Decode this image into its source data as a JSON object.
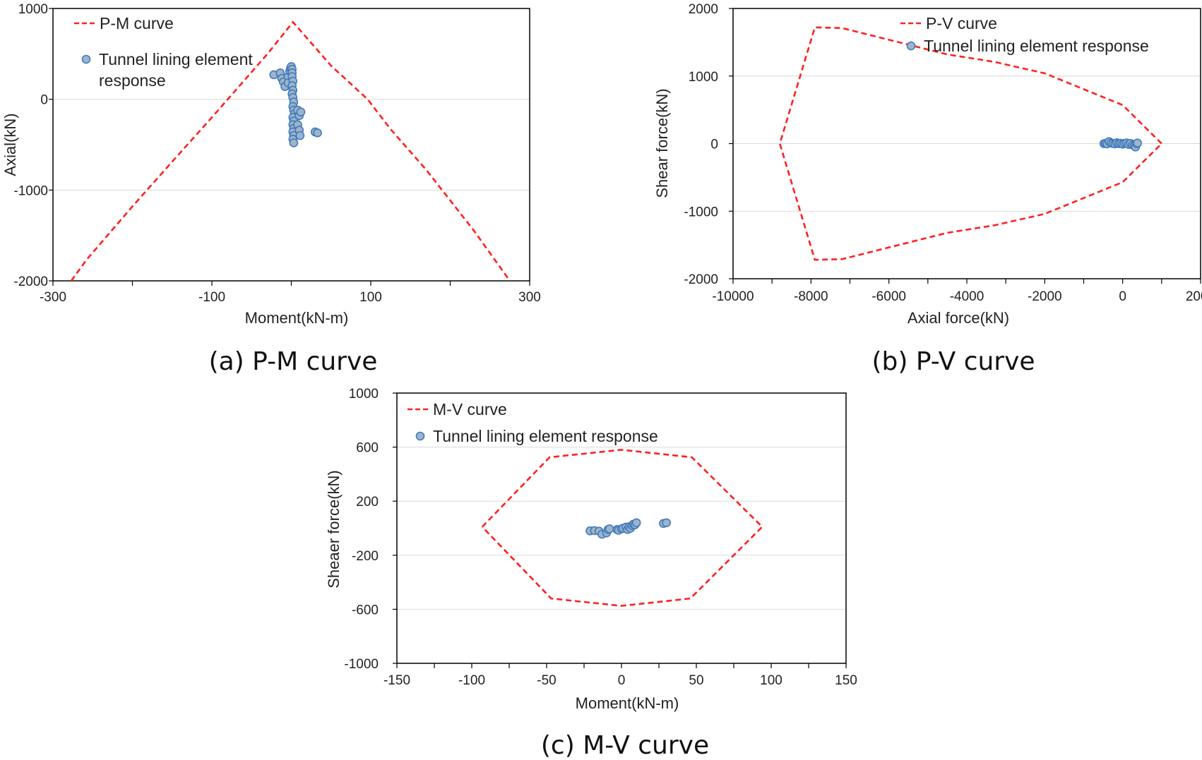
{
  "colors": {
    "curve": "#ff2020",
    "point_fill": "#9fb4c8",
    "point_stroke": "#3f7bbf",
    "grid": "#d9d9d9"
  },
  "chart_data": [
    {
      "type": "line",
      "caption": "(a) P-M curve",
      "xlabel": "Moment(kN-m)",
      "ylabel": "Axial(kN)",
      "xlim": [
        -300,
        300
      ],
      "ylim": [
        -2000,
        1000
      ],
      "xticks": [
        -300,
        -100,
        100,
        300
      ],
      "xtick_labels": [
        "-300",
        "-100",
        "100",
        "300"
      ],
      "yticks": [
        -2000,
        -1000,
        0,
        1000
      ],
      "ytick_labels": [
        "-2000",
        "-1000",
        "0",
        "1000"
      ],
      "gridlines_y": [
        -1000,
        0
      ],
      "legend_placement": "top-left",
      "series": [
        {
          "name": "P-M curve",
          "kind": "dashed-line",
          "points": [
            [
              -277,
              -2000
            ],
            [
              -258,
              -1770
            ],
            [
              -200,
              -1180
            ],
            [
              -140,
              -590
            ],
            [
              -100,
              -200
            ],
            [
              -70,
              100
            ],
            [
              -30,
              500
            ],
            [
              2,
              850
            ],
            [
              50,
              370
            ],
            [
              96,
              0
            ],
            [
              125,
              -330
            ],
            [
              170,
              -780
            ],
            [
              230,
              -1450
            ],
            [
              275,
              -2000
            ]
          ]
        },
        {
          "name": "Tunnel lining element response",
          "kind": "scatter",
          "points": [
            [
              -22,
              270
            ],
            [
              -14,
              290
            ],
            [
              -12,
              230
            ],
            [
              -10,
              190
            ],
            [
              -8,
              140
            ],
            [
              -4,
              250
            ],
            [
              -2,
              310
            ],
            [
              -4,
              180
            ],
            [
              -1,
              340
            ],
            [
              0,
              360
            ],
            [
              1,
              330
            ],
            [
              1,
              290
            ],
            [
              1,
              250
            ],
            [
              2,
              200
            ],
            [
              1,
              150
            ],
            [
              2,
              100
            ],
            [
              1,
              60
            ],
            [
              2,
              20
            ],
            [
              3,
              -30
            ],
            [
              2,
              -80
            ],
            [
              3,
              -120
            ],
            [
              4,
              -160
            ],
            [
              2,
              -200
            ],
            [
              3,
              -240
            ],
            [
              2,
              -280
            ],
            [
              3,
              -320
            ],
            [
              2,
              -360
            ],
            [
              3,
              -400
            ],
            [
              2,
              -440
            ],
            [
              3,
              -480
            ],
            [
              8,
              -120
            ],
            [
              10,
              -180
            ],
            [
              12,
              -140
            ],
            [
              8,
              -280
            ],
            [
              10,
              -340
            ],
            [
              11,
              -400
            ],
            [
              30,
              -360
            ],
            [
              33,
              -370
            ]
          ]
        }
      ]
    },
    {
      "type": "line",
      "caption": "(b) P-V curve",
      "xlabel": "Axial force(kN)",
      "ylabel": "Shear force(kN)",
      "xlim": [
        -10000,
        2000
      ],
      "ylim": [
        -2000,
        2000
      ],
      "xticks": [
        -10000,
        -8000,
        -6000,
        -4000,
        -2000,
        0,
        2000
      ],
      "xtick_labels": [
        "-10000",
        "-8000",
        "-6000",
        "-4000",
        "-2000",
        "0",
        "2000"
      ],
      "yticks": [
        -2000,
        -1000,
        0,
        1000,
        2000
      ],
      "ytick_labels": [
        "-2000",
        "-1000",
        "0",
        "1000",
        "2000"
      ],
      "gridlines_y": [
        -1000,
        0,
        1000
      ],
      "legend_placement": "top-center",
      "series": [
        {
          "name": "P-V curve",
          "kind": "dashed-line",
          "points": [
            [
              1000,
              0
            ],
            [
              0,
              570
            ],
            [
              -2000,
              1040
            ],
            [
              -3300,
              1210
            ],
            [
              -4500,
              1320
            ],
            [
              -7200,
              1710
            ],
            [
              -7900,
              1720
            ],
            [
              -8800,
              0
            ],
            [
              -7900,
              -1720
            ],
            [
              -7200,
              -1710
            ],
            [
              -4500,
              -1320
            ],
            [
              -3300,
              -1210
            ],
            [
              -2000,
              -1040
            ],
            [
              0,
              -570
            ],
            [
              1000,
              0
            ]
          ]
        },
        {
          "name": "Tunnel lining element response",
          "kind": "scatter",
          "points": [
            [
              -480,
              0
            ],
            [
              -440,
              5
            ],
            [
              -400,
              -3
            ],
            [
              -350,
              30
            ],
            [
              -300,
              10
            ],
            [
              -250,
              2
            ],
            [
              -200,
              -5
            ],
            [
              -150,
              12
            ],
            [
              -100,
              0
            ],
            [
              -50,
              5
            ],
            [
              0,
              -8
            ],
            [
              50,
              3
            ],
            [
              100,
              10
            ],
            [
              150,
              -12
            ],
            [
              200,
              4
            ],
            [
              250,
              -20
            ],
            [
              300,
              -30
            ],
            [
              330,
              -50
            ],
            [
              360,
              0
            ],
            [
              380,
              8
            ]
          ]
        }
      ]
    },
    {
      "type": "line",
      "caption": "(c) M-V curve",
      "xlabel": "Moment(kN-m)",
      "ylabel": "Sheaer force(kN)",
      "xlim": [
        -150,
        150
      ],
      "ylim": [
        -1000,
        1000
      ],
      "xticks": [
        -150,
        -100,
        -50,
        0,
        50,
        100,
        150
      ],
      "xtick_labels": [
        "-150",
        "-100",
        "-50",
        "0",
        "50",
        "100",
        "150"
      ],
      "yticks": [
        -1000,
        -600,
        -200,
        200,
        600,
        1000
      ],
      "ytick_labels": [
        "-1000",
        "-600",
        "-200",
        "200",
        "600",
        "1000"
      ],
      "gridlines_y": [
        -600,
        -200,
        200,
        600
      ],
      "legend_placement": "top-left",
      "series": [
        {
          "name": "M-V curve",
          "kind": "dashed-line",
          "points": [
            [
              -93,
              10
            ],
            [
              -48,
              525
            ],
            [
              0,
              580
            ],
            [
              47,
              525
            ],
            [
              94,
              10
            ],
            [
              46,
              -520
            ],
            [
              0,
              -575
            ],
            [
              -47,
              -520
            ],
            [
              -93,
              10
            ]
          ]
        },
        {
          "name": "Tunnel lining element response",
          "kind": "scatter",
          "points": [
            [
              -21,
              -20
            ],
            [
              -18,
              -18
            ],
            [
              -15,
              -22
            ],
            [
              -13,
              -45
            ],
            [
              -10,
              -35
            ],
            [
              -9,
              -10
            ],
            [
              -8,
              -5
            ],
            [
              -3,
              -10
            ],
            [
              -2,
              -15
            ],
            [
              0,
              -5
            ],
            [
              1,
              0
            ],
            [
              3,
              8
            ],
            [
              4,
              -10
            ],
            [
              5,
              10
            ],
            [
              6,
              0
            ],
            [
              7,
              20
            ],
            [
              8,
              30
            ],
            [
              9,
              25
            ],
            [
              10,
              40
            ],
            [
              28,
              35
            ],
            [
              30,
              40
            ]
          ]
        }
      ]
    }
  ]
}
